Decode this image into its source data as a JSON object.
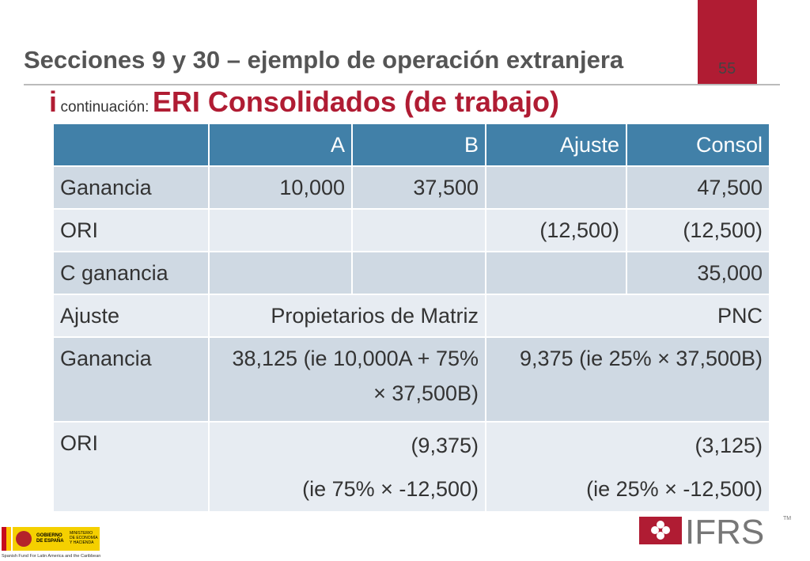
{
  "header": {
    "title": "Secciones 9 y 30 – ejemplo de operación extranjera",
    "page_number": "55",
    "subtitle_marker": "i",
    "subtitle_small": "continuación:",
    "subtitle": "ERI Consolidados (de trabajo)"
  },
  "table": {
    "header": [
      "A",
      "B",
      "Ajuste",
      "Consol"
    ],
    "rows": [
      {
        "label": "Ganancia",
        "cells": [
          "10,000",
          "37,500",
          null,
          "47,500"
        ]
      },
      {
        "label": "ORI",
        "cells": [
          null,
          null,
          "(12,500)",
          "(12,500)"
        ]
      },
      {
        "label": "C ganancia",
        "cells": [
          null,
          null,
          null,
          "35,000"
        ]
      }
    ],
    "split_rows": [
      {
        "label": "Ajuste",
        "parent": [
          "Propietarios de Matriz"
        ],
        "nci": [
          "PNC"
        ]
      },
      {
        "label": "Ganancia",
        "parent": [
          "38,125 (ie 10,000A + 75% × 37,500B)"
        ],
        "nci": [
          "9,375 (ie 25% × 37,500B)"
        ]
      },
      {
        "label": "ORI",
        "parent": [
          "(9,375)",
          "(ie 75% × -12,500)"
        ],
        "nci": [
          "(3,125)",
          "(ie 25% × -12,500)"
        ]
      }
    ]
  },
  "footer": {
    "gov_line1": "GOBIERNO",
    "gov_line2": "DE ESPAÑA",
    "ministry_line1": "MINISTERIO",
    "ministry_line2": "DE ECONOMÍA",
    "ministry_line3": "Y HACIENDA",
    "fund": "Spanish Fund For Latin America and the Caribbean",
    "logo": "IFRS",
    "trademark": "TM"
  }
}
